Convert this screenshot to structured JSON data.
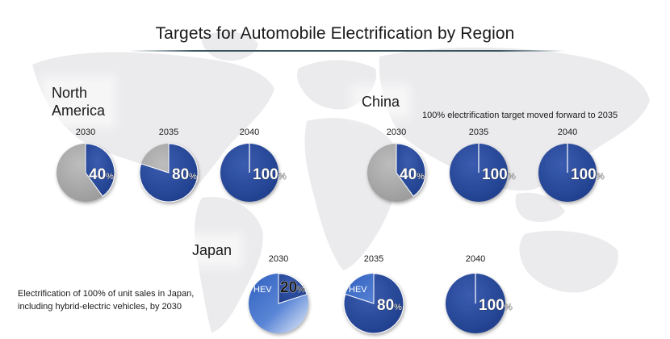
{
  "title": "Targets for Automobile Electrification by Region",
  "regions": {
    "north_america": "North\nAmerica",
    "china": "China",
    "japan": "Japan"
  },
  "notes": {
    "china": "100% electrification target moved forward to 2035",
    "japan": "Electrification of 100% of unit sales in Japan,\nincluding hybrid-electric vehicles, by 2030"
  },
  "colors": {
    "electrified": "#1f3f8c",
    "remainder": "#9a9a9a",
    "hev": "#5b86d6"
  },
  "chart_data": [
    {
      "type": "pie",
      "region": "North America",
      "categories": [
        "2030",
        "2035",
        "2040"
      ],
      "series": [
        {
          "values": [
            40,
            80,
            100
          ]
        }
      ],
      "value_labels": [
        "40",
        "80",
        "100"
      ],
      "unit": "%"
    },
    {
      "type": "pie",
      "region": "China",
      "categories": [
        "2030",
        "2035",
        "2040"
      ],
      "series": [
        {
          "values": [
            40,
            100,
            100
          ]
        }
      ],
      "value_labels": [
        "40",
        "100",
        "100"
      ],
      "unit": "%"
    },
    {
      "type": "pie",
      "region": "Japan",
      "categories": [
        "2030",
        "2035",
        "2040"
      ],
      "series": [
        {
          "values": [
            20,
            80,
            100
          ]
        }
      ],
      "value_labels": [
        "20",
        "80",
        "100"
      ],
      "unit": "%",
      "hev_label": "HEV"
    }
  ]
}
